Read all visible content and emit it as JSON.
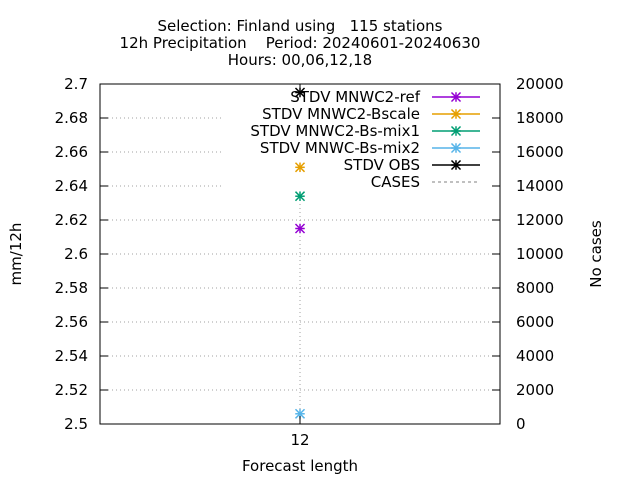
{
  "title_lines": [
    "Selection: Finland using   115 stations",
    "12h Precipitation    Period: 20240601-20240630",
    "Hours: 00,06,12,18"
  ],
  "chart_data": {
    "type": "scatter",
    "title": "Selection: Finland using   115 stations / 12h Precipitation    Period: 20240601-20240630 / Hours: 00,06,12,18",
    "xlabel": "Forecast length",
    "ylabel": "mm/12h",
    "y2label": "No cases",
    "x": [
      12
    ],
    "x_tick_labels": [
      "12"
    ],
    "ylim": [
      2.5,
      2.7
    ],
    "y_ticks": [
      "2.5",
      "2.52",
      "2.54",
      "2.56",
      "2.58",
      "2.6",
      "2.62",
      "2.64",
      "2.66",
      "2.68",
      "2.7"
    ],
    "y2lim": [
      0,
      20000
    ],
    "y2_ticks": [
      "0",
      "2000",
      "4000",
      "6000",
      "8000",
      "10000",
      "12000",
      "14000",
      "16000",
      "18000",
      "20000"
    ],
    "grid": true,
    "legend_position": "top-right",
    "series": [
      {
        "name": "STDV MNWC2-ref",
        "color": "#9400d3",
        "axis": "y1",
        "values": [
          2.615
        ]
      },
      {
        "name": "STDV MNWC2-Bscale",
        "color": "#e69f00",
        "axis": "y1",
        "values": [
          2.651
        ]
      },
      {
        "name": "STDV MNWC2-Bs-mix1",
        "color": "#009e73",
        "axis": "y1",
        "values": [
          2.634
        ]
      },
      {
        "name": "STDV MNWC-Bs-mix2",
        "color": "#56b4e9",
        "axis": "y1",
        "values": [
          2.506
        ]
      },
      {
        "name": "STDV OBS",
        "color": "#000000",
        "axis": "y1",
        "values": [
          2.695
        ]
      },
      {
        "name": "CASES",
        "color": "#808080",
        "axis": "y2",
        "values": [
          null
        ],
        "dashed": true
      }
    ]
  }
}
